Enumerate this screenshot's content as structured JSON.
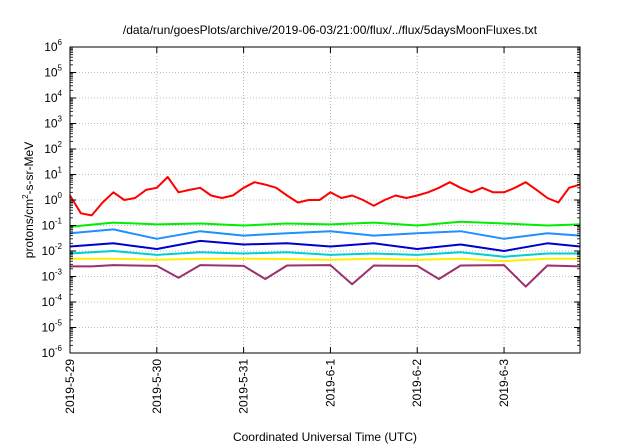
{
  "chart_data": {
    "type": "line",
    "title": "/data/run/goesPlots/archive/2019-06-03/21:00/flux/../flux/5daysMoonFluxes.txt",
    "xlabel": "Coordinated Universal Time (UTC)",
    "ylabel": "protons/cm2-s-sr-MeV",
    "ylabel_parts": {
      "pre": "protons/cm",
      "sup": "2",
      "post": "-s-sr-MeV"
    },
    "y_scale": "log",
    "ylim": [
      1e-06,
      1000000.0
    ],
    "y_ticks": [
      {
        "base": "10",
        "exp": "6"
      },
      {
        "base": "10",
        "exp": "5"
      },
      {
        "base": "10",
        "exp": "4"
      },
      {
        "base": "10",
        "exp": "3"
      },
      {
        "base": "10",
        "exp": "2"
      },
      {
        "base": "10",
        "exp": "1"
      },
      {
        "base": "10",
        "exp": "0"
      },
      {
        "base": "10",
        "exp": "-1"
      },
      {
        "base": "10",
        "exp": "-2"
      },
      {
        "base": "10",
        "exp": "-3"
      },
      {
        "base": "10",
        "exp": "-4"
      },
      {
        "base": "10",
        "exp": "-5"
      },
      {
        "base": "10",
        "exp": "-6"
      }
    ],
    "x_range": [
      "2019-05-29",
      "2019-06-03T21:00"
    ],
    "x_ticks": [
      "2019-5-29",
      "2019-5-30",
      "2019-5-31",
      "2019-6-1",
      "2019-6-2",
      "2019-6-3"
    ],
    "grid": true,
    "legend": "none",
    "series": [
      {
        "color": "#ff0000",
        "x": [
          "2019-05-29T00:00",
          "2019-05-29T03:00",
          "2019-05-29T06:00",
          "2019-05-29T09:00",
          "2019-05-29T12:00",
          "2019-05-29T15:00",
          "2019-05-29T18:00",
          "2019-05-29T21:00",
          "2019-05-30T00:00",
          "2019-05-30T03:00",
          "2019-05-30T06:00",
          "2019-05-30T09:00",
          "2019-05-30T12:00",
          "2019-05-30T15:00",
          "2019-05-30T18:00",
          "2019-05-30T21:00",
          "2019-05-31T00:00",
          "2019-05-31T03:00",
          "2019-05-31T06:00",
          "2019-05-31T09:00",
          "2019-05-31T12:00",
          "2019-05-31T15:00",
          "2019-05-31T18:00",
          "2019-05-31T21:00",
          "2019-06-01T00:00",
          "2019-06-01T03:00",
          "2019-06-01T06:00",
          "2019-06-01T09:00",
          "2019-06-01T12:00",
          "2019-06-01T15:00",
          "2019-06-01T18:00",
          "2019-06-01T21:00",
          "2019-06-02T00:00",
          "2019-06-02T03:00",
          "2019-06-02T06:00",
          "2019-06-02T09:00",
          "2019-06-02T12:00",
          "2019-06-02T15:00",
          "2019-06-02T18:00",
          "2019-06-02T21:00",
          "2019-06-03T00:00",
          "2019-06-03T03:00",
          "2019-06-03T06:00",
          "2019-06-03T09:00",
          "2019-06-03T12:00",
          "2019-06-03T15:00",
          "2019-06-03T18:00",
          "2019-06-03T21:00"
        ],
        "values": [
          1.5,
          0.3,
          0.25,
          0.8,
          2,
          1,
          1.2,
          2.5,
          3,
          8,
          2,
          2.5,
          3,
          1.5,
          1.2,
          1.5,
          3,
          5,
          4,
          3,
          1.5,
          0.8,
          1,
          1,
          2,
          1.2,
          1.5,
          1,
          0.6,
          1,
          1.5,
          1.2,
          1.5,
          2,
          3,
          5,
          3,
          2,
          3,
          2,
          2,
          3,
          5,
          2.5,
          1.2,
          0.8,
          3,
          4
        ]
      },
      {
        "color": "#00ee00",
        "x": [
          "2019-05-29T00:00",
          "2019-05-29T12:00",
          "2019-05-30T00:00",
          "2019-05-30T12:00",
          "2019-05-31T00:00",
          "2019-05-31T12:00",
          "2019-06-01T00:00",
          "2019-06-01T12:00",
          "2019-06-02T00:00",
          "2019-06-02T12:00",
          "2019-06-03T00:00",
          "2019-06-03T12:00",
          "2019-06-03T21:00"
        ],
        "values": [
          0.09,
          0.13,
          0.11,
          0.12,
          0.1,
          0.12,
          0.11,
          0.13,
          0.1,
          0.14,
          0.12,
          0.1,
          0.11
        ]
      },
      {
        "color": "#1e90ff",
        "x": [
          "2019-05-29T00:00",
          "2019-05-29T12:00",
          "2019-05-30T00:00",
          "2019-05-30T12:00",
          "2019-05-31T00:00",
          "2019-05-31T12:00",
          "2019-06-01T00:00",
          "2019-06-01T12:00",
          "2019-06-02T00:00",
          "2019-06-02T12:00",
          "2019-06-03T00:00",
          "2019-06-03T12:00",
          "2019-06-03T21:00"
        ],
        "values": [
          0.05,
          0.07,
          0.03,
          0.06,
          0.04,
          0.05,
          0.06,
          0.04,
          0.05,
          0.06,
          0.03,
          0.05,
          0.04
        ]
      },
      {
        "color": "#0000cd",
        "x": [
          "2019-05-29T00:00",
          "2019-05-29T12:00",
          "2019-05-30T00:00",
          "2019-05-30T12:00",
          "2019-05-31T00:00",
          "2019-05-31T12:00",
          "2019-06-01T00:00",
          "2019-06-01T12:00",
          "2019-06-02T00:00",
          "2019-06-02T12:00",
          "2019-06-03T00:00",
          "2019-06-03T12:00",
          "2019-06-03T21:00"
        ],
        "values": [
          0.015,
          0.02,
          0.012,
          0.025,
          0.018,
          0.02,
          0.015,
          0.02,
          0.012,
          0.018,
          0.01,
          0.02,
          0.015
        ]
      },
      {
        "color": "#00ced1",
        "x": [
          "2019-05-29T00:00",
          "2019-05-29T12:00",
          "2019-05-30T00:00",
          "2019-05-30T12:00",
          "2019-05-31T00:00",
          "2019-05-31T12:00",
          "2019-06-01T00:00",
          "2019-06-01T12:00",
          "2019-06-02T00:00",
          "2019-06-02T12:00",
          "2019-06-03T00:00",
          "2019-06-03T12:00",
          "2019-06-03T21:00"
        ],
        "values": [
          0.008,
          0.01,
          0.007,
          0.009,
          0.008,
          0.009,
          0.007,
          0.008,
          0.007,
          0.009,
          0.006,
          0.008,
          0.008
        ]
      },
      {
        "color": "#ffee00",
        "x": [
          "2019-05-29T00:00",
          "2019-05-29T12:00",
          "2019-05-30T00:00",
          "2019-05-30T12:00",
          "2019-05-31T00:00",
          "2019-05-31T12:00",
          "2019-06-01T00:00",
          "2019-06-01T12:00",
          "2019-06-02T00:00",
          "2019-06-02T12:00",
          "2019-06-03T00:00",
          "2019-06-03T12:00",
          "2019-06-03T21:00"
        ],
        "values": [
          0.005,
          0.005,
          0.0045,
          0.005,
          0.005,
          0.0048,
          0.0045,
          0.005,
          0.0045,
          0.005,
          0.004,
          0.005,
          0.005
        ]
      },
      {
        "color": "#9b2f6f",
        "x": [
          "2019-05-29T00:00",
          "2019-05-29T06:00",
          "2019-05-29T12:00",
          "2019-05-30T00:00",
          "2019-05-30T06:00",
          "2019-05-30T12:00",
          "2019-05-31T00:00",
          "2019-05-31T06:00",
          "2019-05-31T12:00",
          "2019-06-01T00:00",
          "2019-06-01T06:00",
          "2019-06-01T12:00",
          "2019-06-02T00:00",
          "2019-06-02T06:00",
          "2019-06-02T12:00",
          "2019-06-03T00:00",
          "2019-06-03T06:00",
          "2019-06-03T12:00",
          "2019-06-03T21:00"
        ],
        "values": [
          0.0025,
          0.0025,
          0.0028,
          0.0026,
          0.0009,
          0.0028,
          0.0026,
          0.0008,
          0.0027,
          0.0028,
          0.0005,
          0.0027,
          0.0026,
          0.0008,
          0.0027,
          0.0028,
          0.0004,
          0.0027,
          0.0025
        ]
      }
    ]
  }
}
